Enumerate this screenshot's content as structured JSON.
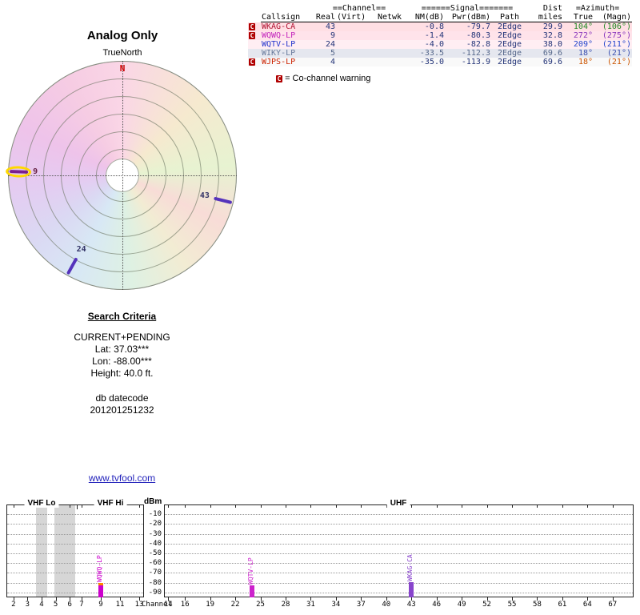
{
  "link": "www.tvfool.com",
  "search": {
    "heading": "Search Criteria",
    "mode": "CURRENT+PENDING",
    "lat": "Lat: 37.03***",
    "lon": "Lon: -88.00***",
    "height": "Height: 40.0 ft.",
    "db_label": "db datecode",
    "db_value": "201201251232"
  },
  "table": {
    "group_headers": {
      "channel": "==Channel==",
      "signal": "======Signal=======",
      "dist": "Dist",
      "azimuth": "=Azimuth="
    },
    "col_headers": [
      "Callsign",
      "Real",
      "(Virt)",
      "Netwk",
      "NM(dB)",
      "Pwr(dBm)",
      "Path",
      "miles",
      "True",
      "(Magn)"
    ],
    "rows": [
      {
        "co": true,
        "callsign": "WKAG-CA",
        "real": "43",
        "virt": "",
        "netwk": "",
        "nm": "-0.8",
        "pwr": "-79.7",
        "path": "2Edge",
        "miles": "29.9",
        "az_true": "104°",
        "az_magn": "(106°)",
        "bg": "#ffdfe4",
        "callsign_color": "#b01030",
        "value_color": "#223377",
        "az_color": "#1f8822"
      },
      {
        "co": true,
        "callsign": "WQWQ-LP",
        "real": "9",
        "virt": "",
        "netwk": "",
        "nm": "-1.4",
        "pwr": "-80.3",
        "path": "2Edge",
        "miles": "32.8",
        "az_true": "272°",
        "az_magn": "(275°)",
        "bg": "#ffe3ea",
        "callsign_color": "#c322bb",
        "value_color": "#223377",
        "az_color": "#8833bb"
      },
      {
        "co": false,
        "callsign": "WQTV-LP",
        "real": "24",
        "virt": "",
        "netwk": "",
        "nm": "-4.0",
        "pwr": "-82.8",
        "path": "2Edge",
        "miles": "38.0",
        "az_true": "209°",
        "az_magn": "(211°)",
        "bg": "#ffeef3",
        "callsign_color": "#2233cc",
        "value_color": "#223377",
        "az_color": "#2244cc"
      },
      {
        "co": false,
        "callsign": "WIKY-LP",
        "real": "5",
        "virt": "",
        "netwk": "",
        "nm": "-33.5",
        "pwr": "-112.3",
        "path": "2Edge",
        "miles": "69.6",
        "az_true": "18°",
        "az_magn": "(21°)",
        "bg": "#e5e7ef",
        "callsign_color": "#66789a",
        "value_color": "#55678a",
        "az_color": "#3a4fb0"
      },
      {
        "co": true,
        "callsign": "WJPS-LP",
        "real": "4",
        "virt": "",
        "netwk": "",
        "nm": "-35.0",
        "pwr": "-113.9",
        "path": "2Edge",
        "miles": "69.6",
        "az_true": "18°",
        "az_magn": "(21°)",
        "bg": "#f9f9f9",
        "callsign_color": "#cc2200",
        "value_color": "#223377",
        "az_color": "#cc5500"
      }
    ],
    "legend_marker": "C",
    "legend_text": "= Co-channel warning"
  },
  "chart_data": [
    {
      "type": "radar",
      "title": "Analog Only",
      "frame_label": "TrueNorth",
      "north_label": "N",
      "stations": [
        {
          "callsign": "WQWQ-LP",
          "channel": 9,
          "azimuth_true": 272,
          "highlighted": true,
          "color": "#7a1f8f",
          "label_color": "#662244"
        },
        {
          "callsign": "WKAG-CA",
          "channel": 43,
          "azimuth_true": 104,
          "highlighted": false,
          "color": "#5533bb",
          "label_color": "#333366"
        },
        {
          "callsign": "WQTV-LP",
          "channel": 24,
          "azimuth_true": 209,
          "highlighted": false,
          "color": "#5533bb",
          "label_color": "#333366"
        }
      ]
    },
    {
      "type": "bar",
      "ylabel": "dBm",
      "xlabel": "Channel",
      "ylim": [
        -95,
        0
      ],
      "yticks": [
        -10,
        -20,
        -30,
        -40,
        -50,
        -60,
        -70,
        -80,
        -90
      ],
      "bands": [
        {
          "label": "VHF Lo",
          "from": 2,
          "to": 6
        },
        {
          "label": "VHF Hi",
          "from": 7,
          "to": 13
        },
        {
          "label": "UHF",
          "from": 14,
          "to": 69
        }
      ],
      "xticks_vhf": [
        2,
        3,
        4,
        5,
        6,
        7,
        9,
        11,
        13
      ],
      "xticks_uhf": [
        14,
        16,
        19,
        22,
        25,
        28,
        31,
        34,
        37,
        40,
        43,
        46,
        49,
        52,
        55,
        58,
        61,
        64,
        67
      ],
      "bars": [
        {
          "callsign": "WQWQ-LP",
          "channel": 9,
          "dbm": -80.3,
          "color": "#cc00cc",
          "cap_color": "#ff8800"
        },
        {
          "callsign": "WQTV-LP",
          "channel": 24,
          "dbm": -82.8,
          "color": "#cc22cc"
        },
        {
          "callsign": "WKAG-CA",
          "channel": 43,
          "dbm": -79.7,
          "color": "#8844cc"
        }
      ],
      "shaded_ranges": [
        [
          3.6,
          4.4
        ],
        [
          4.9,
          6.4
        ]
      ]
    }
  ]
}
